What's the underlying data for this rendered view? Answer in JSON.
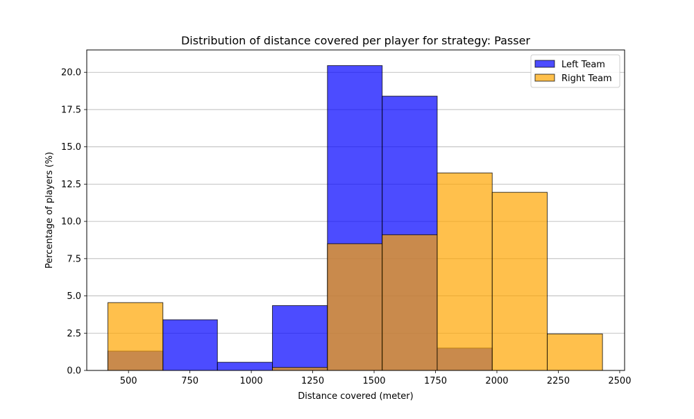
{
  "chart_data": {
    "type": "histogram",
    "title": "Distribution of distance covered per player for strategy: Passer",
    "xlabel": "Distance covered (meter)",
    "ylabel": "Percentage of players (%)",
    "xlim": [
      330,
      2520
    ],
    "ylim": [
      0,
      21.5
    ],
    "x_ticks": [
      500,
      750,
      1000,
      1250,
      1500,
      1750,
      2000,
      2250,
      2500
    ],
    "x_tick_labels": [
      "500",
      "750",
      "1000",
      "1250",
      "1500",
      "1750",
      "2000",
      "2250",
      "2500"
    ],
    "y_ticks": [
      0,
      2.5,
      5,
      7.5,
      10,
      12.5,
      15,
      17.5,
      20
    ],
    "y_tick_labels": [
      "0.0",
      "2.5",
      "5.0",
      "7.5",
      "10.0",
      "12.5",
      "15.0",
      "17.5",
      "20.0"
    ],
    "grid": "y",
    "legend_position": "top-right",
    "bin_edges": [
      416,
      640,
      862,
      1086,
      1310,
      1533,
      1757,
      1981,
      2205,
      2430
    ],
    "series": [
      {
        "name": "Left Team",
        "color": "#0000ff",
        "alpha": 0.7,
        "values": [
          1.3,
          3.4,
          0.55,
          4.35,
          20.45,
          18.4,
          1.5,
          0,
          0
        ]
      },
      {
        "name": "Right Team",
        "color": "#ffa500",
        "alpha": 0.7,
        "values": [
          4.55,
          0,
          0,
          0.2,
          8.5,
          9.1,
          13.25,
          11.95,
          2.45
        ]
      }
    ]
  }
}
